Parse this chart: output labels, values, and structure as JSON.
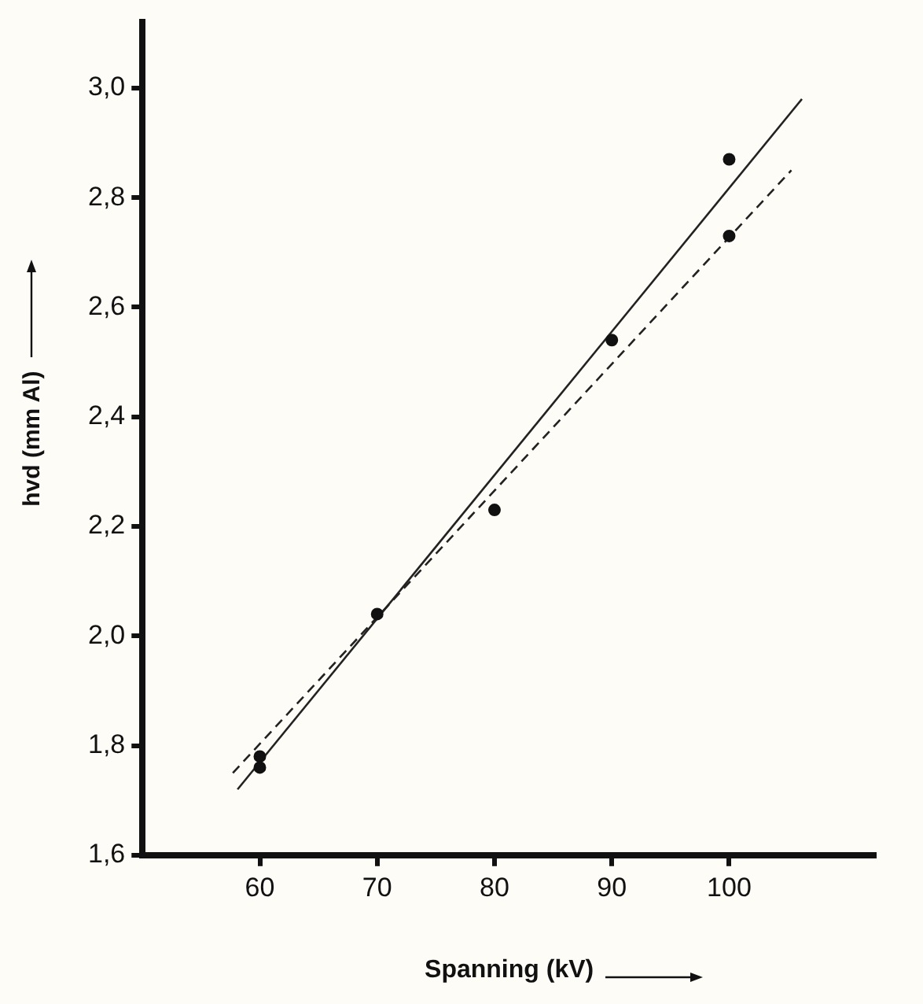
{
  "chart_data": {
    "type": "scatter",
    "xlabel": "Spanning (kV)",
    "ylabel": "hvd (mm Al)",
    "xlim": [
      50,
      112.5
    ],
    "ylim": [
      1.6,
      3.12
    ],
    "xticks": [
      60,
      70,
      80,
      90,
      100
    ],
    "yticks": [
      {
        "value": 1.6,
        "label": "1,6"
      },
      {
        "value": 1.8,
        "label": "1,8"
      },
      {
        "value": 2.0,
        "label": "2,0"
      },
      {
        "value": 2.2,
        "label": "2,2"
      },
      {
        "value": 2.4,
        "label": "2,4"
      },
      {
        "value": 2.6,
        "label": "2,6"
      },
      {
        "value": 2.8,
        "label": "2,8"
      },
      {
        "value": 3.0,
        "label": "3,0"
      }
    ],
    "grid": false,
    "legend": false,
    "series": [
      {
        "marker": "circle",
        "color": "#111111",
        "x": [
          60,
          60,
          70,
          80,
          90,
          100,
          100
        ],
        "values": [
          1.78,
          1.76,
          2.04,
          2.23,
          2.54,
          2.87,
          2.73
        ]
      },
      {
        "type": "line",
        "marker": "none",
        "line_style": "solid",
        "color": "#222222",
        "x": [
          58.1,
          106.2
        ],
        "values": [
          1.72,
          2.98
        ]
      },
      {
        "type": "line",
        "marker": "none",
        "line_style": "dashed",
        "color": "#222222",
        "x": [
          57.7,
          105.3
        ],
        "values": [
          1.75,
          2.85
        ]
      }
    ]
  }
}
